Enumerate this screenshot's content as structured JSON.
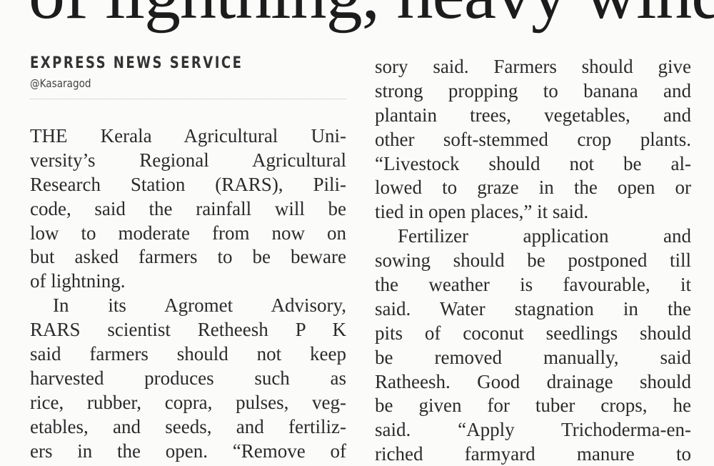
{
  "article": {
    "headline": "of lightning, heavy wind",
    "byline": "EXPRESS NEWS SERVICE",
    "dateline": "@Kasaragod",
    "left_column": [
      {
        "text": "THE Kerala Agricultural Uni-"
      },
      {
        "text": "versity’s Regional Agricultural"
      },
      {
        "text": "Research Station (RARS), Pili-"
      },
      {
        "text": "code, said the rainfall will be"
      },
      {
        "text": "low to moderate from now on"
      },
      {
        "text": "but asked farmers to be beware"
      },
      {
        "text": "of lightning.",
        "last": true
      },
      {
        "text": "In its Agromet Advisory,",
        "indent": true
      },
      {
        "text": "RARS scientist Retheesh P K"
      },
      {
        "text": "said farmers should not keep"
      },
      {
        "text": "harvested produces such as"
      },
      {
        "text": "rice, rubber, copra, pulses, veg-"
      },
      {
        "text": "etables, and seeds, and fertiliz-"
      },
      {
        "text": "ers in the open. “Remove of"
      }
    ],
    "right_column": [
      {
        "text": "sory said. Farmers should give"
      },
      {
        "text": "strong propping to banana and"
      },
      {
        "text": "plantain trees, vegetables, and"
      },
      {
        "text": "other soft-stemmed crop plants."
      },
      {
        "text": "“Livestock should not be al-"
      },
      {
        "text": "lowed to graze in the open or"
      },
      {
        "text": "tied in open places,” it said.",
        "last": true
      },
      {
        "text": "Fertilizer application and",
        "indent": true
      },
      {
        "text": "sowing should be postponed till"
      },
      {
        "text": "the weather is favourable, it"
      },
      {
        "text": "said. Water stagnation in the"
      },
      {
        "text": "pits of coconut seedlings should"
      },
      {
        "text": "be removed manually, said"
      },
      {
        "text": "Ratheesh. Good drainage should"
      },
      {
        "text": "be given for tuber crops, he"
      },
      {
        "text": "said. “Apply Trichoderma-en-"
      },
      {
        "text": "riched farmyard manure to"
      }
    ]
  }
}
